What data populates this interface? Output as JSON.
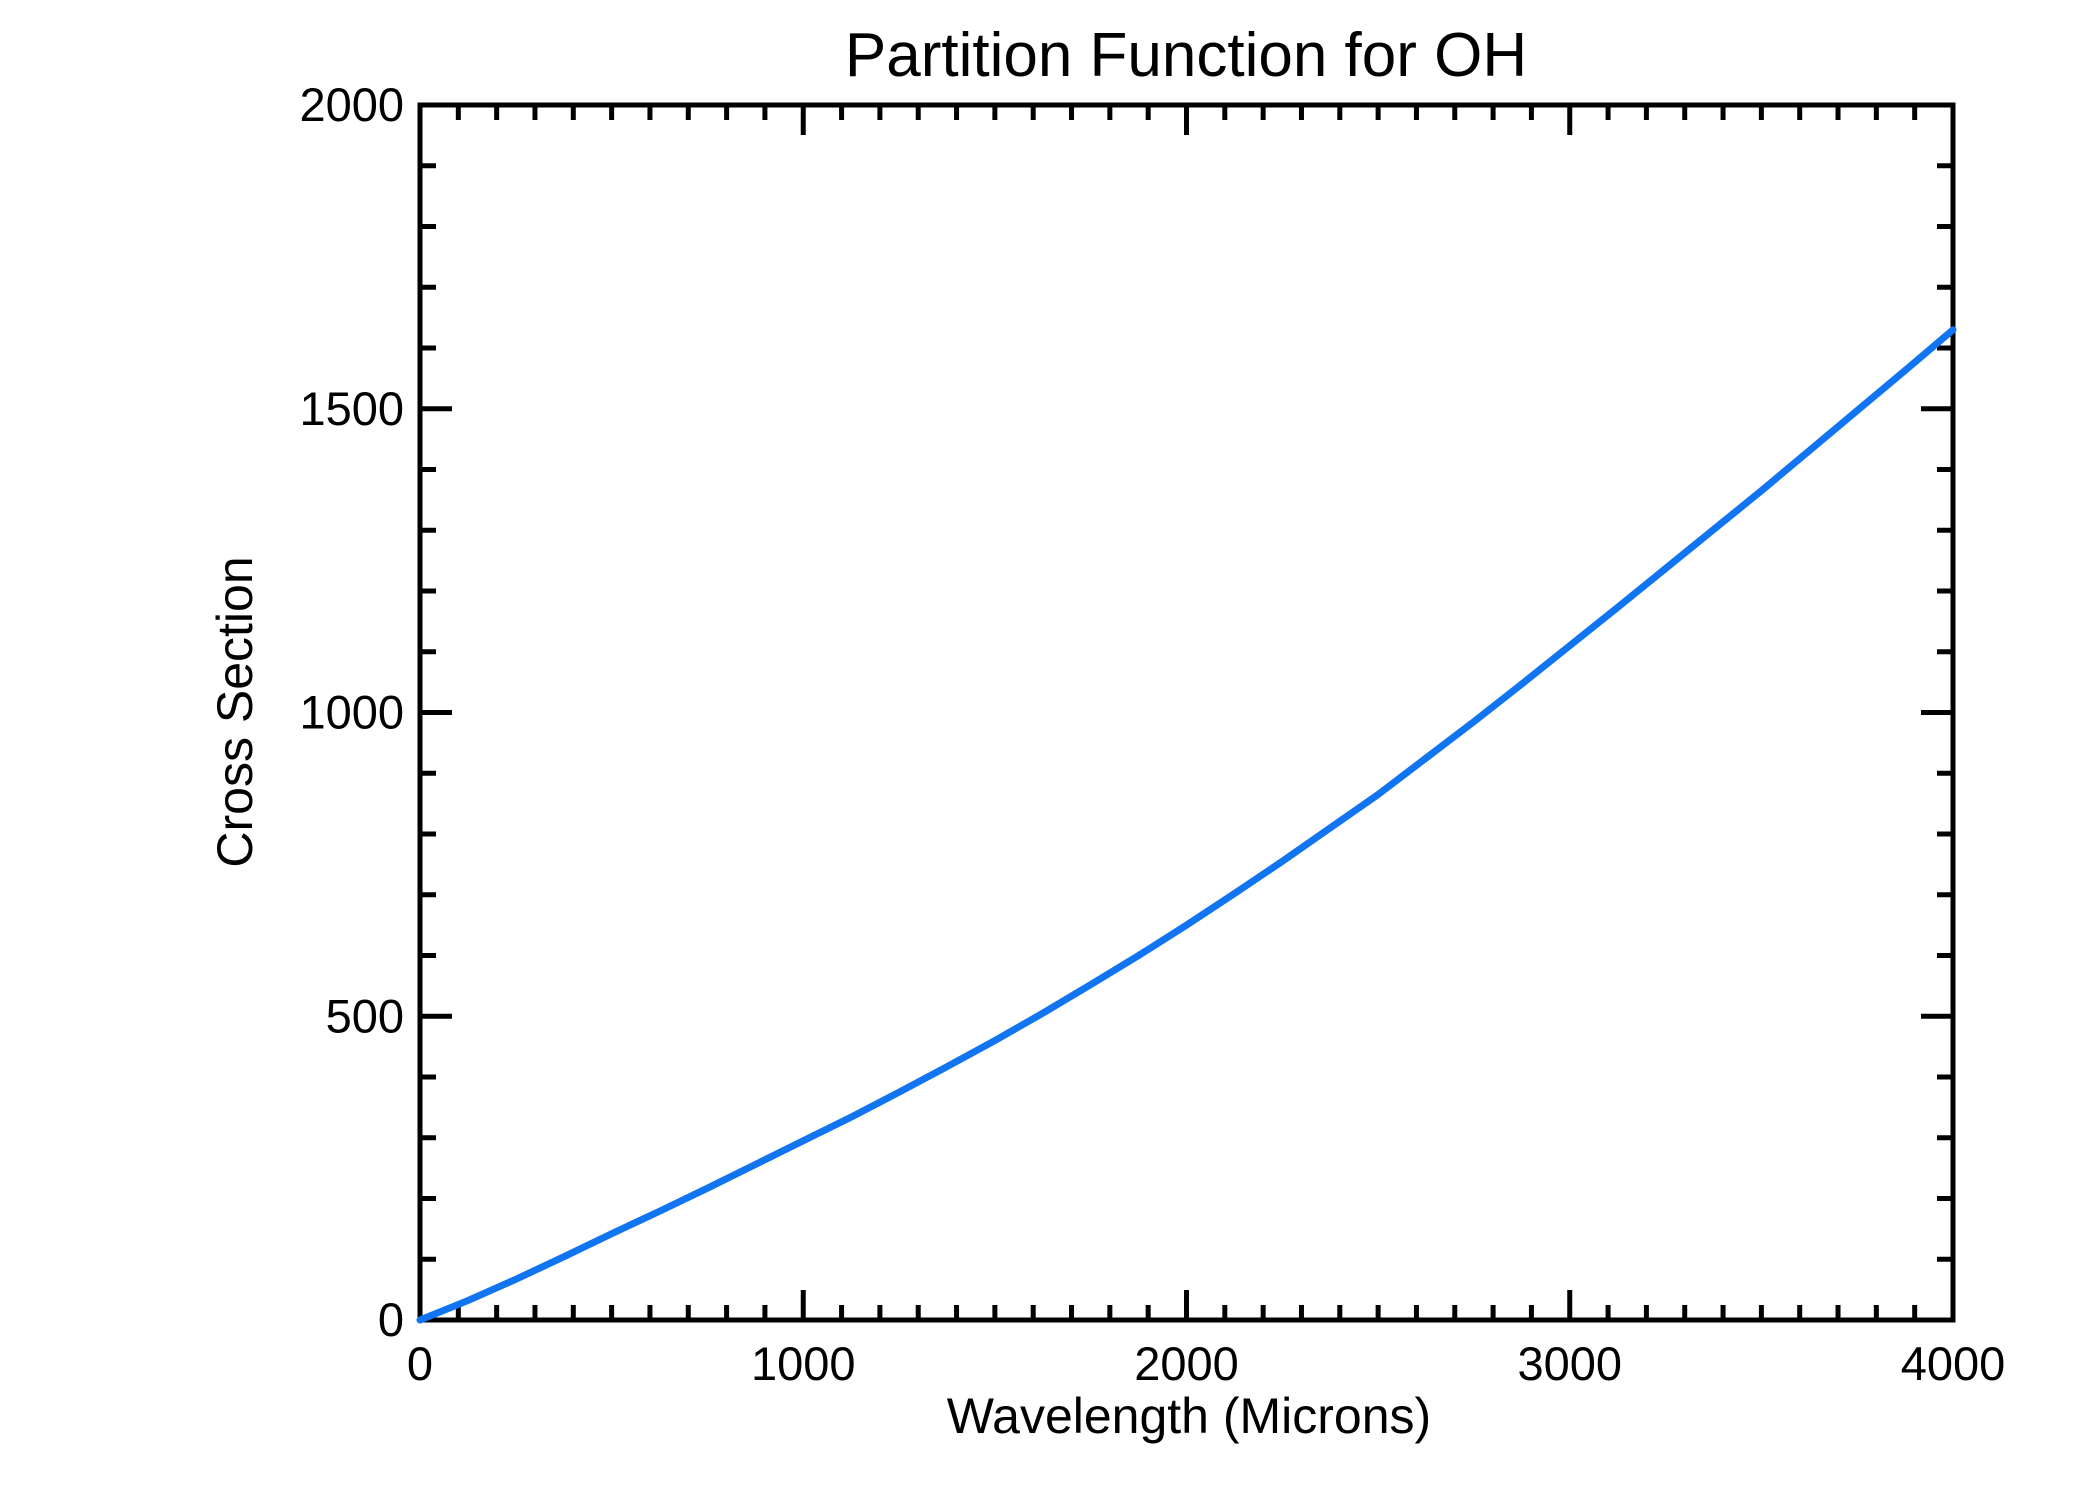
{
  "figure": {
    "background": "#ffffff",
    "axis_color": "#000000"
  },
  "chart_data": {
    "type": "line",
    "title": "Partition Function for OH",
    "xlabel": "Wavelength (Microns)",
    "ylabel": "Cross Section",
    "xlim": [
      0,
      4000
    ],
    "ylim": [
      0,
      2000
    ],
    "xticks": [
      0,
      1000,
      2000,
      3000,
      4000
    ],
    "yticks": [
      0,
      500,
      1000,
      1500,
      2000
    ],
    "x_minor_interval": 100,
    "y_minor_interval": 100,
    "grid": false,
    "legend_position": "none",
    "series": [
      {
        "name": "OH partition function",
        "color": "#1175F2",
        "x": [
          0,
          125,
          250,
          375,
          500,
          625,
          750,
          875,
          1000,
          1125,
          1250,
          1375,
          1500,
          1625,
          1750,
          1875,
          2000,
          2125,
          2250,
          2375,
          2500,
          2625,
          2750,
          2875,
          3000,
          3125,
          3250,
          3375,
          3500,
          3625,
          3750,
          3875,
          4000
        ],
        "y": [
          0,
          32,
          67,
          104,
          142,
          179,
          217,
          256,
          295,
          334,
          375,
          417,
          460,
          505,
          552,
          600,
          650,
          702,
          755,
          810,
          865,
          925,
          985,
          1047,
          1110,
          1173,
          1237,
          1301,
          1365,
          1431,
          1497,
          1563,
          1630
        ]
      }
    ]
  }
}
